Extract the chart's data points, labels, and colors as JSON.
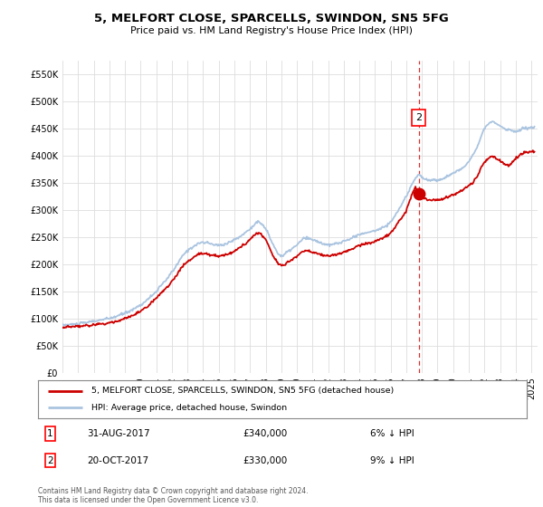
{
  "title": "5, MELFORT CLOSE, SPARCELLS, SWINDON, SN5 5FG",
  "subtitle": "Price paid vs. HM Land Registry's House Price Index (HPI)",
  "ylim": [
    0,
    575000
  ],
  "yticks": [
    0,
    50000,
    100000,
    150000,
    200000,
    250000,
    300000,
    350000,
    400000,
    450000,
    500000,
    550000
  ],
  "hpi_color": "#aac4e0",
  "price_color": "#cc0000",
  "t1_year": 2017.583,
  "t2_year": 2017.792,
  "t1_price": 340000,
  "t2_price": 330000,
  "legend_property": "5, MELFORT CLOSE, SPARCELLS, SWINDON, SN5 5FG (detached house)",
  "legend_hpi": "HPI: Average price, detached house, Swindon",
  "footer": "Contains HM Land Registry data © Crown copyright and database right 2024.\nThis data is licensed under the Open Government Licence v3.0.",
  "hpi_keypoints": [
    [
      1995.0,
      88000
    ],
    [
      1996.0,
      90000
    ],
    [
      1997.0,
      95000
    ],
    [
      1998.0,
      100000
    ],
    [
      1999.0,
      110000
    ],
    [
      2000.0,
      125000
    ],
    [
      2001.0,
      150000
    ],
    [
      2002.0,
      185000
    ],
    [
      2003.0,
      225000
    ],
    [
      2004.0,
      240000
    ],
    [
      2005.0,
      235000
    ],
    [
      2006.0,
      245000
    ],
    [
      2007.0,
      265000
    ],
    [
      2007.5,
      278000
    ],
    [
      2008.0,
      265000
    ],
    [
      2008.5,
      235000
    ],
    [
      2009.0,
      215000
    ],
    [
      2009.5,
      225000
    ],
    [
      2010.0,
      235000
    ],
    [
      2010.5,
      248000
    ],
    [
      2011.0,
      245000
    ],
    [
      2011.5,
      240000
    ],
    [
      2012.0,
      235000
    ],
    [
      2012.5,
      238000
    ],
    [
      2013.0,
      242000
    ],
    [
      2013.5,
      248000
    ],
    [
      2014.0,
      255000
    ],
    [
      2014.5,
      258000
    ],
    [
      2015.0,
      262000
    ],
    [
      2015.5,
      268000
    ],
    [
      2016.0,
      278000
    ],
    [
      2016.5,
      300000
    ],
    [
      2017.0,
      325000
    ],
    [
      2017.5,
      355000
    ],
    [
      2017.8,
      365000
    ],
    [
      2018.0,
      360000
    ],
    [
      2018.5,
      355000
    ],
    [
      2019.0,
      355000
    ],
    [
      2019.5,
      360000
    ],
    [
      2020.0,
      368000
    ],
    [
      2020.5,
      375000
    ],
    [
      2021.0,
      390000
    ],
    [
      2021.5,
      415000
    ],
    [
      2022.0,
      450000
    ],
    [
      2022.5,
      462000
    ],
    [
      2023.0,
      455000
    ],
    [
      2023.5,
      448000
    ],
    [
      2024.0,
      445000
    ],
    [
      2024.5,
      450000
    ],
    [
      2025.0,
      452000
    ]
  ],
  "prop_keypoints": [
    [
      1995.0,
      83000
    ],
    [
      1996.0,
      85000
    ],
    [
      1997.0,
      88000
    ],
    [
      1998.0,
      92000
    ],
    [
      1999.0,
      100000
    ],
    [
      2000.0,
      113000
    ],
    [
      2001.0,
      138000
    ],
    [
      2002.0,
      168000
    ],
    [
      2003.0,
      205000
    ],
    [
      2004.0,
      220000
    ],
    [
      2005.0,
      215000
    ],
    [
      2006.0,
      225000
    ],
    [
      2007.0,
      245000
    ],
    [
      2007.5,
      258000
    ],
    [
      2008.0,
      245000
    ],
    [
      2008.5,
      215000
    ],
    [
      2009.0,
      198000
    ],
    [
      2009.5,
      205000
    ],
    [
      2010.0,
      215000
    ],
    [
      2010.5,
      225000
    ],
    [
      2011.0,
      222000
    ],
    [
      2011.5,
      218000
    ],
    [
      2012.0,
      215000
    ],
    [
      2012.5,
      218000
    ],
    [
      2013.0,
      222000
    ],
    [
      2013.5,
      228000
    ],
    [
      2014.0,
      235000
    ],
    [
      2014.5,
      238000
    ],
    [
      2015.0,
      242000
    ],
    [
      2015.5,
      248000
    ],
    [
      2016.0,
      258000
    ],
    [
      2016.5,
      278000
    ],
    [
      2017.0,
      300000
    ],
    [
      2017.583,
      340000
    ],
    [
      2017.792,
      330000
    ],
    [
      2018.0,
      325000
    ],
    [
      2018.5,
      318000
    ],
    [
      2019.0,
      318000
    ],
    [
      2019.5,
      322000
    ],
    [
      2020.0,
      328000
    ],
    [
      2020.5,
      335000
    ],
    [
      2021.0,
      345000
    ],
    [
      2021.5,
      360000
    ],
    [
      2022.0,
      388000
    ],
    [
      2022.5,
      398000
    ],
    [
      2023.0,
      390000
    ],
    [
      2023.5,
      382000
    ],
    [
      2024.0,
      395000
    ],
    [
      2024.5,
      405000
    ],
    [
      2025.0,
      407000
    ]
  ]
}
